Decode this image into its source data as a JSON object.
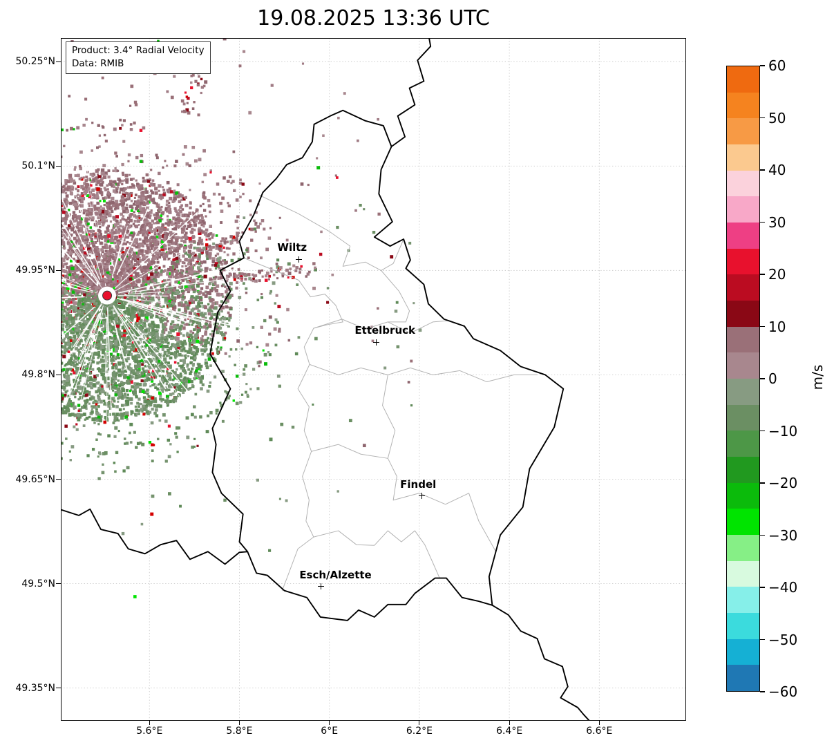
{
  "title": "19.08.2025 13:36 UTC",
  "info_box": {
    "product": "Product: 3.4° Radial Velocity",
    "data_source": "Data: RMIB"
  },
  "axes": {
    "lat_ticks": [
      {
        "label": "50.25°N",
        "value": 50.25
      },
      {
        "label": "50.1°N",
        "value": 50.1
      },
      {
        "label": "49.95°N",
        "value": 49.95
      },
      {
        "label": "49.8°N",
        "value": 49.8
      },
      {
        "label": "49.65°N",
        "value": 49.65
      },
      {
        "label": "49.5°N",
        "value": 49.5
      },
      {
        "label": "49.35°N",
        "value": 49.35
      }
    ],
    "lon_ticks": [
      {
        "label": "5.6°E",
        "value": 5.6
      },
      {
        "label": "5.8°E",
        "value": 5.8
      },
      {
        "label": "6°E",
        "value": 6.0
      },
      {
        "label": "6.2°E",
        "value": 6.2
      },
      {
        "label": "6.4°E",
        "value": 6.4
      },
      {
        "label": "6.6°E",
        "value": 6.6
      }
    ]
  },
  "cities": [
    {
      "name": "Wiltz",
      "lon": 5.932,
      "lat": 49.966
    },
    {
      "name": "Ettelbruck",
      "lon": 6.104,
      "lat": 49.847
    },
    {
      "name": "Findel",
      "lon": 6.205,
      "lat": 49.626
    },
    {
      "name": "Esch/Alzette",
      "lon": 5.981,
      "lat": 49.496
    }
  ],
  "radar": {
    "lon": 5.506,
    "lat": 49.914,
    "site_marker_color": "#e8112d",
    "palette": {
      "mauve": [
        "#9a7078",
        "#a8878e",
        "#8f666f",
        "#a07b84"
      ],
      "green": [
        "#879b82",
        "#6b8f63",
        "#75936e",
        "#5f8a58"
      ],
      "red": [
        "#e8112d",
        "#bb0c21",
        "#8a0815",
        "#d40000"
      ],
      "bright_green": [
        "#0bbb0b",
        "#00e400"
      ]
    }
  },
  "colorbar": {
    "label": "m/s",
    "vmin": -60,
    "vmax": 60,
    "ticks": [
      60,
      50,
      40,
      30,
      20,
      10,
      0,
      -10,
      -20,
      -30,
      -40,
      -50,
      -60
    ],
    "tick_labels": [
      "60",
      "50",
      "40",
      "30",
      "20",
      "10",
      "0",
      "−10",
      "−20",
      "−30",
      "−40",
      "−50",
      "−60"
    ],
    "colors_top_to_bottom": [
      "#ef6a10",
      "#f5831f",
      "#f79a45",
      "#fbc98f",
      "#fbd2dc",
      "#f8a8c8",
      "#ee3f84",
      "#e8112d",
      "#bb0c21",
      "#8a0815",
      "#9a7078",
      "#a8878e",
      "#879b82",
      "#6b8f63",
      "#4d9747",
      "#21991f",
      "#0bbb0b",
      "#00e400",
      "#86ef86",
      "#d8fadf",
      "#86efe9",
      "#3bdbdd",
      "#15b0d4",
      "#1f78b4"
    ]
  },
  "chart_data": {
    "type": "heatmap",
    "title": "19.08.2025 13:36 UTC",
    "product": "3.4° Radial Velocity",
    "data_source": "RMIB",
    "units": "m/s",
    "colorbar_range": [
      -60,
      60
    ],
    "colorbar_ticks": [
      60,
      50,
      40,
      30,
      20,
      10,
      0,
      -10,
      -20,
      -30,
      -40,
      -50,
      -60
    ],
    "legend_position": "right-colorbar",
    "grid": true,
    "extent": {
      "lon_min": 5.403,
      "lon_max": 6.793,
      "lat_min": 49.303,
      "lat_max": 50.284
    },
    "radar_site": {
      "lon": 5.506,
      "lat": 49.914
    },
    "description": "Doppler radial velocity echoes centered on radar site west of Luxembourg; mauve (positive velocities ~0 to +10 m/s) mostly north of the site, muted green (negative velocities ~0 to -10 m/s) mostly south, with scattered red (+10 to +30) and bright green (-20 to -30) speckles"
  },
  "colors": {
    "country_border": "#000000",
    "district_border": "#b3b3b3",
    "grid": "#c9c9c9",
    "background": "#ffffff"
  },
  "geo": {
    "country_borders": [
      [
        [
          6.03,
          50.18
        ],
        [
          6.08,
          50.165
        ],
        [
          6.12,
          50.158
        ],
        [
          6.138,
          50.128
        ],
        [
          6.115,
          50.095
        ],
        [
          6.11,
          50.06
        ],
        [
          6.14,
          50.02
        ],
        [
          6.1,
          49.998
        ],
        [
          6.135,
          49.985
        ],
        [
          6.165,
          49.995
        ],
        [
          6.18,
          49.965
        ],
        [
          6.17,
          49.953
        ],
        [
          6.21,
          49.93
        ],
        [
          6.22,
          49.902
        ],
        [
          6.255,
          49.88
        ],
        [
          6.3,
          49.87
        ],
        [
          6.32,
          49.852
        ],
        [
          6.38,
          49.835
        ],
        [
          6.425,
          49.812
        ],
        [
          6.48,
          49.8
        ],
        [
          6.52,
          49.78
        ],
        [
          6.5,
          49.725
        ],
        [
          6.445,
          49.665
        ],
        [
          6.43,
          49.61
        ],
        [
          6.38,
          49.57
        ],
        [
          6.37,
          49.546
        ],
        [
          6.355,
          49.51
        ],
        [
          6.362,
          49.469
        ],
        [
          6.33,
          49.475
        ],
        [
          6.295,
          49.48
        ],
        [
          6.26,
          49.508
        ],
        [
          6.235,
          49.508
        ],
        [
          6.19,
          49.486
        ],
        [
          6.17,
          49.47
        ],
        [
          6.13,
          49.47
        ],
        [
          6.1,
          49.452
        ],
        [
          6.065,
          49.462
        ],
        [
          6.04,
          49.447
        ],
        [
          5.98,
          49.452
        ],
        [
          5.95,
          49.48
        ],
        [
          5.9,
          49.49
        ],
        [
          5.862,
          49.512
        ],
        [
          5.838,
          49.515
        ],
        [
          5.818,
          49.546
        ],
        [
          5.8,
          49.56
        ],
        [
          5.808,
          49.6
        ],
        [
          5.76,
          49.63
        ],
        [
          5.74,
          49.66
        ],
        [
          5.748,
          49.7
        ],
        [
          5.74,
          49.723
        ],
        [
          5.78,
          49.78
        ],
        [
          5.735,
          49.83
        ],
        [
          5.742,
          49.856
        ],
        [
          5.752,
          49.89
        ],
        [
          5.78,
          49.92
        ],
        [
          5.757,
          49.95
        ],
        [
          5.81,
          49.968
        ],
        [
          5.8,
          49.992
        ],
        [
          5.832,
          50.03
        ],
        [
          5.852,
          50.062
        ],
        [
          5.882,
          50.082
        ],
        [
          5.905,
          50.102
        ],
        [
          5.94,
          50.112
        ],
        [
          5.962,
          50.135
        ],
        [
          5.966,
          50.16
        ],
        [
          6.002,
          50.172
        ],
        [
          6.03,
          50.18
        ]
      ],
      [
        [
          6.138,
          50.128
        ],
        [
          6.168,
          50.142
        ],
        [
          6.152,
          50.172
        ],
        [
          6.19,
          50.188
        ],
        [
          6.178,
          50.212
        ],
        [
          6.21,
          50.222
        ],
        [
          6.196,
          50.252
        ],
        [
          6.225,
          50.272
        ],
        [
          6.22,
          50.29
        ]
      ],
      [
        [
          5.4,
          49.607
        ],
        [
          5.443,
          49.598
        ],
        [
          5.468,
          49.607
        ],
        [
          5.492,
          49.578
        ],
        [
          5.53,
          49.572
        ],
        [
          5.553,
          49.55
        ],
        [
          5.59,
          49.543
        ],
        [
          5.625,
          49.556
        ],
        [
          5.66,
          49.562
        ],
        [
          5.69,
          49.535
        ],
        [
          5.73,
          49.546
        ],
        [
          5.768,
          49.528
        ],
        [
          5.8,
          49.545
        ],
        [
          5.818,
          49.546
        ]
      ],
      [
        [
          6.362,
          49.469
        ],
        [
          6.398,
          49.455
        ],
        [
          6.425,
          49.432
        ],
        [
          6.462,
          49.421
        ],
        [
          6.478,
          49.392
        ],
        [
          6.518,
          49.381
        ],
        [
          6.53,
          49.352
        ],
        [
          6.514,
          49.336
        ],
        [
          6.552,
          49.322
        ],
        [
          6.565,
          49.312
        ],
        [
          6.585,
          49.298
        ]
      ]
    ],
    "district_borders": [
      [
        [
          5.845,
          50.058
        ],
        [
          5.93,
          50.032
        ],
        [
          6.0,
          50.006
        ],
        [
          6.046,
          49.985
        ],
        [
          6.03,
          49.956
        ],
        [
          6.08,
          49.962
        ],
        [
          6.115,
          49.95
        ],
        [
          6.142,
          49.96
        ],
        [
          6.165,
          49.995
        ]
      ],
      [
        [
          5.81,
          49.968
        ],
        [
          5.878,
          49.95
        ],
        [
          5.932,
          49.936
        ],
        [
          5.958,
          49.912
        ],
        [
          5.99,
          49.916
        ],
        [
          6.014,
          49.9
        ],
        [
          6.03,
          49.876
        ]
      ],
      [
        [
          6.03,
          49.876
        ],
        [
          5.995,
          49.872
        ],
        [
          5.965,
          49.867
        ],
        [
          5.944,
          49.84
        ],
        [
          5.956,
          49.815
        ],
        [
          5.93,
          49.78
        ],
        [
          5.955,
          49.754
        ],
        [
          5.944,
          49.72
        ],
        [
          5.96,
          49.69
        ],
        [
          5.94,
          49.654
        ],
        [
          5.955,
          49.62
        ],
        [
          5.948,
          49.59
        ],
        [
          5.965,
          49.567
        ],
        [
          5.93,
          49.55
        ],
        [
          5.908,
          49.512
        ],
        [
          5.895,
          49.49
        ]
      ],
      [
        [
          5.965,
          49.867
        ],
        [
          6.028,
          49.88
        ],
        [
          6.08,
          49.866
        ],
        [
          6.13,
          49.876
        ],
        [
          6.18,
          49.86
        ],
        [
          6.23,
          49.876
        ],
        [
          6.268,
          49.878
        ]
      ],
      [
        [
          6.115,
          49.95
        ],
        [
          6.155,
          49.92
        ],
        [
          6.178,
          49.892
        ],
        [
          6.17,
          49.876
        ],
        [
          6.13,
          49.876
        ]
      ],
      [
        [
          5.956,
          49.815
        ],
        [
          6.02,
          49.8
        ],
        [
          6.07,
          49.81
        ],
        [
          6.13,
          49.8
        ],
        [
          6.18,
          49.81
        ],
        [
          6.23,
          49.8
        ],
        [
          6.29,
          49.806
        ],
        [
          6.35,
          49.79
        ],
        [
          6.41,
          49.8
        ],
        [
          6.462,
          49.8
        ]
      ],
      [
        [
          6.13,
          49.8
        ],
        [
          6.118,
          49.756
        ],
        [
          6.146,
          49.72
        ],
        [
          6.13,
          49.68
        ],
        [
          6.15,
          49.654
        ],
        [
          6.142,
          49.62
        ]
      ],
      [
        [
          5.96,
          49.69
        ],
        [
          6.02,
          49.7
        ],
        [
          6.07,
          49.686
        ],
        [
          6.13,
          49.68
        ]
      ],
      [
        [
          6.142,
          49.62
        ],
        [
          6.2,
          49.63
        ],
        [
          6.258,
          49.614
        ],
        [
          6.31,
          49.63
        ],
        [
          6.332,
          49.59
        ],
        [
          6.37,
          49.546
        ]
      ],
      [
        [
          5.965,
          49.567
        ],
        [
          6.02,
          49.576
        ],
        [
          6.06,
          49.556
        ],
        [
          6.1,
          49.555
        ],
        [
          6.13,
          49.576
        ],
        [
          6.16,
          49.56
        ],
        [
          6.19,
          49.576
        ],
        [
          6.212,
          49.556
        ],
        [
          6.23,
          49.53
        ],
        [
          6.245,
          49.508
        ]
      ]
    ]
  }
}
